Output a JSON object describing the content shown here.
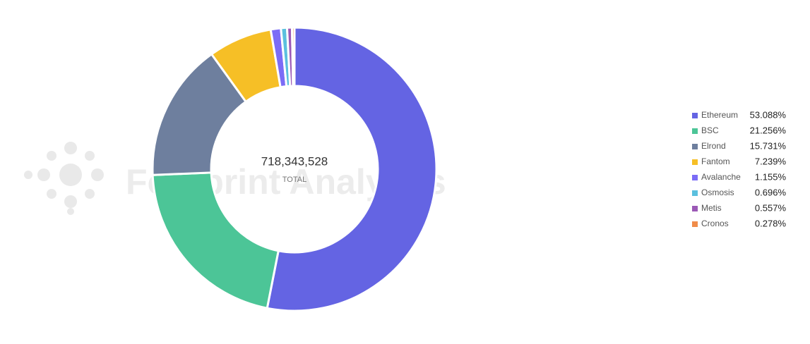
{
  "chart_data": {
    "type": "donut",
    "watermark": "Footprint Analytics",
    "center_value": "718,343,528",
    "center_label": "TOTAL",
    "categories": [
      "Ethereum",
      "BSC",
      "Elrond",
      "Fantom",
      "Avalanche",
      "Osmosis",
      "Metis",
      "Cronos"
    ],
    "values": [
      53.088,
      21.256,
      15.731,
      7.239,
      1.155,
      0.696,
      0.557,
      0.278
    ],
    "value_labels": [
      "53.088%",
      "21.256%",
      "15.731%",
      "7.239%",
      "1.155%",
      "0.696%",
      "0.557%",
      "0.278%"
    ],
    "colors": [
      "#6464e3",
      "#4cc597",
      "#6e7f9e",
      "#f6bf26",
      "#7b6cf6",
      "#5bc0de",
      "#9b59b6",
      "#f08c4a"
    ],
    "legend": "right"
  }
}
